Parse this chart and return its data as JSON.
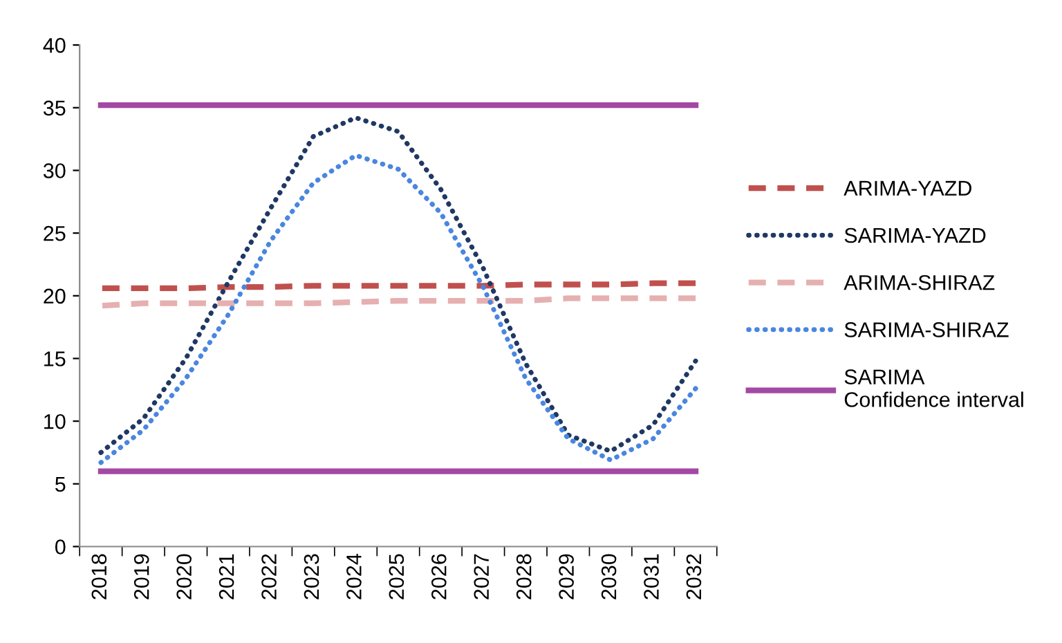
{
  "chart_data": {
    "type": "line",
    "categories": [
      "2018",
      "2019",
      "2020",
      "2021",
      "2022",
      "2023",
      "2024",
      "2025",
      "2026",
      "2027",
      "2028",
      "2029",
      "2030",
      "2031",
      "2032"
    ],
    "ylim": [
      0,
      40
    ],
    "yticks": [
      0,
      5,
      10,
      15,
      20,
      25,
      30,
      35,
      40
    ],
    "grid": false,
    "legend": "right",
    "marker": "none",
    "series": [
      {
        "name": "ARIMA-YAZD",
        "color": "#c0504d",
        "line_style": "dashed",
        "values": [
          20.6,
          20.6,
          20.6,
          20.7,
          20.7,
          20.8,
          20.8,
          20.8,
          20.8,
          20.8,
          20.9,
          20.9,
          20.9,
          21.0,
          21.0
        ]
      },
      {
        "name": "SARIMA-YAZD",
        "color": "#1f3864",
        "line_style": "dotted",
        "values": [
          7.5,
          10.2,
          15.0,
          21.1,
          27.0,
          32.7,
          34.2,
          33.1,
          28.5,
          22.2,
          14.6,
          8.9,
          7.6,
          9.7,
          14.8
        ]
      },
      {
        "name": "ARIMA-SHIRAZ",
        "color": "#e6b0b0",
        "line_style": "dashed",
        "values": [
          19.2,
          19.4,
          19.4,
          19.4,
          19.4,
          19.4,
          19.5,
          19.6,
          19.6,
          19.6,
          19.6,
          19.8,
          19.8,
          19.8,
          19.8
        ]
      },
      {
        "name": "SARIMA-SHIRAZ",
        "color": "#4a86e0",
        "line_style": "dotted",
        "values": [
          6.7,
          9.3,
          13.4,
          18.5,
          24.4,
          29.0,
          31.2,
          30.1,
          26.6,
          20.7,
          13.4,
          8.6,
          6.9,
          8.6,
          12.6
        ]
      },
      {
        "name": "SARIMA\nConfidence interval",
        "color": "#a349a4",
        "line_style": "solid",
        "values": [
          35.2,
          35.2,
          35.2,
          35.2,
          35.2,
          35.2,
          35.2,
          35.2,
          35.2,
          35.2,
          35.2,
          35.2,
          35.2,
          35.2,
          35.2
        ]
      },
      {
        "color": "#a349a4",
        "line_style": "solid",
        "values": [
          6.0,
          6.0,
          6.0,
          6.0,
          6.0,
          6.0,
          6.0,
          6.0,
          6.0,
          6.0,
          6.0,
          6.0,
          6.0,
          6.0,
          6.0
        ]
      }
    ]
  }
}
